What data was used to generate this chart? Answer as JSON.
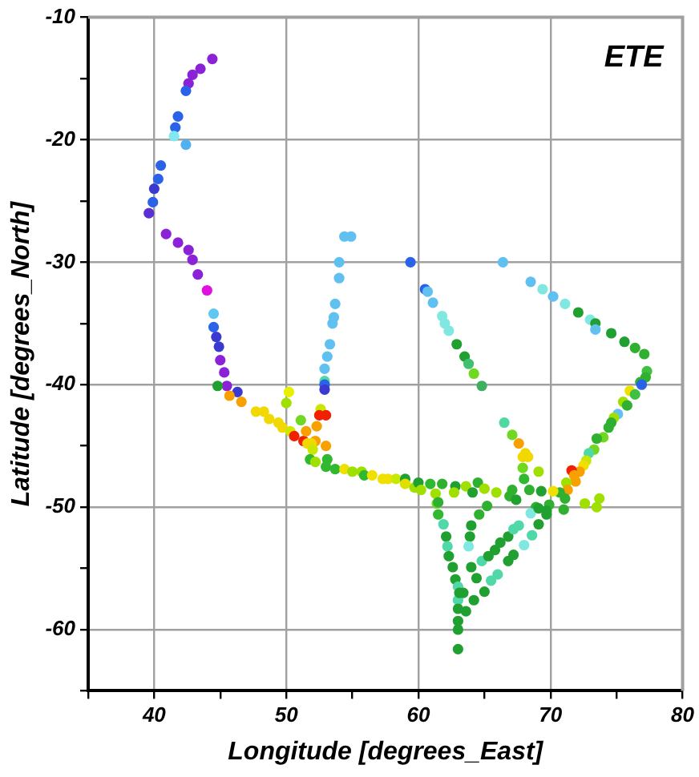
{
  "chart_data": {
    "type": "scatter",
    "title": "ETE",
    "xlabel": "Longitude [degrees_East]",
    "ylabel": "Latitude [degrees_North]",
    "xlim": [
      35,
      80
    ],
    "ylim": [
      -65,
      -10
    ],
    "xticks": [
      {
        "value": 35,
        "label": null
      },
      40,
      {
        "value": 45,
        "label": null
      },
      50,
      {
        "value": 55,
        "label": null
      },
      60,
      {
        "value": 65,
        "label": null
      },
      70,
      {
        "value": 75,
        "label": null
      },
      80
    ],
    "yticks": [
      {
        "value": -65,
        "label": null
      },
      -60,
      {
        "value": -55,
        "label": null
      },
      -50,
      {
        "value": -45,
        "label": null
      },
      -40,
      {
        "value": -35,
        "label": null
      },
      -30,
      {
        "value": -25,
        "label": null
      },
      -20,
      {
        "value": -15,
        "label": null
      },
      -10
    ],
    "grid": true,
    "legend": false,
    "marker": "circle",
    "x": [
      44.4,
      43.5,
      42.9,
      42.6,
      42.4,
      41.8,
      41.6,
      41.5,
      42.4,
      40.5,
      40.3,
      40.0,
      39.9,
      39.6,
      40.9,
      41.8,
      42.6,
      42.9,
      43.3,
      44.0,
      44.5,
      44.5,
      44.7,
      44.9,
      45.0,
      45.3,
      45.5,
      44.8,
      46.3,
      54.4,
      54.9,
      54.0,
      54.0,
      53.7,
      53.6,
      53.5,
      53.3,
      53.1,
      52.9,
      52.9,
      52.9,
      52.9,
      50.2,
      45.7,
      46.6,
      47.7,
      48.3,
      48.7,
      49.4,
      49.7,
      50.3,
      50.6,
      51.3,
      51.6,
      50.0,
      51.1,
      51.5,
      52.3,
      52.6,
      52.5,
      53.0,
      53.0,
      52.2,
      51.9,
      52.0,
      51.8,
      52.2,
      53.0,
      53.1,
      53.7,
      54.4,
      55.0,
      55.7,
      55.9,
      56.5,
      57.3,
      57.7,
      58.3,
      59.0,
      59.0,
      59.7,
      60.0,
      60.2,
      60.9,
      61.3,
      61.4,
      61.5,
      59.4,
      66.4,
      60.5,
      60.7,
      61.1,
      61.8,
      62.0,
      62.3,
      62.9,
      63.5,
      63.8,
      64.2,
      64.8,
      66.5,
      67.1,
      67.6,
      68.1,
      68.3,
      67.9,
      67.9,
      69.1,
      68.0,
      68.5,
      69.4,
      70.2,
      71.1,
      72.1,
      73.0,
      73.4,
      73.4,
      74.6,
      75.6,
      76.4,
      77.1,
      77.3,
      77.2,
      76.8,
      76.9,
      76.0,
      76.4,
      75.5,
      75.8,
      75.1,
      74.8,
      74.6,
      74.4,
      74.0,
      73.5,
      73.3,
      72.9,
      72.7,
      72.5,
      72.2,
      71.6,
      71.8,
      71.9,
      71.2,
      71.3,
      70.7,
      70.2,
      71.1,
      72.6,
      73.5,
      73.7,
      71.0,
      69.9,
      69.7,
      68.9,
      61.8,
      62.8,
      63.6,
      64.5,
      64.1,
      65.0,
      65.9,
      67.1,
      66.9,
      67.4,
      68.4,
      69.3,
      62.7,
      61.5,
      65.2,
      64.6,
      64.0,
      61.9,
      62.1,
      63.9,
      63.8,
      62.2,
      62.3,
      62.6,
      62.8,
      63.0,
      63.0,
      63.0,
      63.0,
      63.0,
      63.0,
      64.0,
      64.4,
      64.2,
      63.6,
      63.1,
      64.8,
      65.3,
      65.8,
      66.2,
      66.8,
      67.2,
      67.6,
      68.5,
      69.1,
      65.0,
      65.5,
      66.0,
      66.8,
      67.2,
      68.0,
      68.6,
      69.1,
      69.7,
      63.4
    ],
    "values": [
      -13.4,
      -14.2,
      -14.7,
      -15.4,
      -16.0,
      -18.1,
      -19.0,
      -19.7,
      -20.4,
      -22.1,
      -23.2,
      -24.0,
      -25.1,
      -26.0,
      -27.7,
      -28.4,
      -29.0,
      -29.8,
      -31.0,
      -32.3,
      -34.2,
      -35.3,
      -36.1,
      -36.9,
      -38.0,
      -39.0,
      -40.1,
      -40.1,
      -40.6,
      -27.9,
      -27.9,
      -30.0,
      -31.3,
      -33.4,
      -34.5,
      -35.0,
      -36.7,
      -37.7,
      -38.7,
      -39.7,
      -40.0,
      -40.4,
      -40.6,
      -40.9,
      -41.4,
      -42.2,
      -42.2,
      -42.8,
      -43.1,
      -43.5,
      -43.8,
      -44.2,
      -44.6,
      -44.8,
      -41.5,
      -42.9,
      -43.8,
      -43.4,
      -42.0,
      -42.5,
      -42.5,
      -45.0,
      -44.6,
      -44.8,
      -45.3,
      -46.1,
      -46.3,
      -46.7,
      -46.1,
      -46.9,
      -46.9,
      -47.1,
      -47.1,
      -47.4,
      -47.4,
      -47.7,
      -47.7,
      -47.7,
      -47.7,
      -48.1,
      -48.4,
      -48.0,
      -48.6,
      -48.1,
      -48.9,
      -49.7,
      -50.6,
      -30.0,
      -30.0,
      -32.2,
      -32.4,
      -33.3,
      -34.4,
      -35.0,
      -35.6,
      -36.7,
      -37.7,
      -38.3,
      -39.1,
      -40.1,
      -43.1,
      -44.1,
      -44.8,
      -45.6,
      -45.9,
      -45.9,
      -46.8,
      -47.1,
      -47.7,
      -31.6,
      -32.2,
      -32.8,
      -33.4,
      -34.1,
      -34.7,
      -35.0,
      -35.5,
      -35.8,
      -36.5,
      -37.0,
      -37.5,
      -38.9,
      -39.4,
      -39.8,
      -40.0,
      -40.5,
      -40.8,
      -41.4,
      -41.7,
      -42.4,
      -42.7,
      -43.1,
      -43.5,
      -44.3,
      -44.4,
      -45.3,
      -45.6,
      -46.2,
      -46.6,
      -47.1,
      -47.0,
      -47.4,
      -47.9,
      -48.0,
      -48.6,
      -48.8,
      -48.7,
      -49.3,
      -49.7,
      -50.0,
      -49.3,
      -50.2,
      -49.8,
      -50.3,
      -50.0,
      -48.1,
      -48.3,
      -48.3,
      -48.0,
      -48.8,
      -48.5,
      -48.8,
      -48.6,
      -49.1,
      -49.4,
      -48.6,
      -48.7,
      -48.8,
      -49.6,
      -49.9,
      -50.6,
      -51.5,
      -51.4,
      -52.4,
      -52.4,
      -53.2,
      -53.2,
      -54.0,
      -54.9,
      -55.9,
      -56.5,
      -57.6,
      -58.3,
      -59.3,
      -60.0,
      -61.6,
      -54.9,
      -55.8,
      -57.6,
      -58.5,
      -57.0,
      -54.4,
      -54.0,
      -53.5,
      -52.9,
      -52.4,
      -51.8,
      -51.5,
      -50.5,
      -50.1,
      -56.9,
      -56.0,
      -55.5,
      -54.4,
      -53.9,
      -53.1,
      -52.3,
      -51.4,
      -50.6,
      -57.0
    ],
    "colors": [
      "#8b22d8",
      "#8b22d8",
      "#8b22d8",
      "#8b22d8",
      "#2a62e8",
      "#2a62e8",
      "#2a62e8",
      "#80e8f0",
      "#50b0f0",
      "#2a62e8",
      "#2a62e8",
      "#3a3ad0",
      "#2a62e8",
      "#5a30d0",
      "#8b22d8",
      "#8b22d8",
      "#8b22d8",
      "#8b22d8",
      "#8b22d8",
      "#e010e0",
      "#60c8f0",
      "#2a62e8",
      "#3a3ad0",
      "#3a3ad0",
      "#8b22d8",
      "#8b22d8",
      "#8b22d8",
      "#20a030",
      "#3a3ad0",
      "#60c0f0",
      "#60c0f0",
      "#60c0f0",
      "#60c0f0",
      "#60c0f0",
      "#60c0f0",
      "#60c0f0",
      "#60c0f0",
      "#60c0f0",
      "#60c0f0",
      "#50d8a8",
      "#2a62e8",
      "#3a3ad0",
      "#e8f000",
      "#f8a000",
      "#f8a000",
      "#f0d800",
      "#f0d800",
      "#f0d800",
      "#f0d800",
      "#f0d800",
      "#d0e800",
      "#f02000",
      "#f02000",
      "#f0d800",
      "#a0e000",
      "#70d820",
      "#f8a000",
      "#f8a000",
      "#c8e800",
      "#f02000",
      "#f02000",
      "#f8a000",
      "#f8a000",
      "#f0d800",
      "#c8e800",
      "#30b830",
      "#a0e000",
      "#30b830",
      "#30b830",
      "#30b830",
      "#f0e000",
      "#a0e000",
      "#a0e000",
      "#30b830",
      "#f0e000",
      "#f0e000",
      "#f0e000",
      "#c8e800",
      "#20a030",
      "#e0e000",
      "#a0e000",
      "#20a030",
      "#a0e000",
      "#30b830",
      "#a0e000",
      "#70d820",
      "#30b830",
      "#2a62e8",
      "#60c0f0",
      "#2a62e8",
      "#60c0f0",
      "#60c0f0",
      "#80e8e0",
      "#80e8e0",
      "#80e8e0",
      "#20a030",
      "#20a030",
      "#40c070",
      "#70d820",
      "#40b060",
      "#50d8a0",
      "#70d820",
      "#f8a000",
      "#f0d800",
      "#f0d800",
      "#f0d800",
      "#70d820",
      "#a0e000",
      "#30b830",
      "#60c0f0",
      "#80e8e0",
      "#60c0f0",
      "#80e8e0",
      "#20a030",
      "#80e8e0",
      "#20a030",
      "#60c0f0",
      "#20a030",
      "#20a030",
      "#30b030",
      "#30b030",
      "#40c040",
      "#30b030",
      "#30b030",
      "#2a62e8",
      "#f0e000",
      "#40c040",
      "#a0e000",
      "#30b030",
      "#60c0f0",
      "#a0e000",
      "#30b030",
      "#30b030",
      "#70d820",
      "#30b030",
      "#70d820",
      "#50d8a8",
      "#c8e800",
      "#f0e000",
      "#f8a000",
      "#f02000",
      "#f8a000",
      "#f8a000",
      "#a0e000",
      "#f8a000",
      "#30b030",
      "#f0e000",
      "#30b030",
      "#a0e000",
      "#a0e000",
      "#a0e000",
      "#30b030",
      "#30b030",
      "#20a030",
      "#30b030",
      "#30b030",
      "#20a030",
      "#a0e000",
      "#30b030",
      "#20a030",
      "#a0e000",
      "#a0e000",
      "#30b030",
      "#30b030",
      "#20a030",
      "#30b030",
      "#20a030",
      "#a0e000",
      "#30b030",
      "#30b030",
      "#30b030",
      "#20a030",
      "#50d8a8",
      "#20a030",
      "#20a030",
      "#80e8e0",
      "#50d8a8",
      "#20a030",
      "#20a030",
      "#20a030",
      "#50d8a8",
      "#50d8a8",
      "#20a030",
      "#20a030",
      "#20a030",
      "#20a030",
      "#20a030",
      "#20a030",
      "#20a030",
      "#20a030",
      "#20a030",
      "#50d8a8",
      "#20a030",
      "#20a030",
      "#20a030",
      "#20a030",
      "#50d8a8",
      "#50d8a8",
      "#80e8e0",
      "#20a030",
      "#20a030",
      "#50d8a8",
      "#50d8a8",
      "#20a030",
      "#20a030",
      "#80e8e0",
      "#50d8a8",
      "#20a030",
      "#20a030",
      "#20a030"
    ]
  }
}
